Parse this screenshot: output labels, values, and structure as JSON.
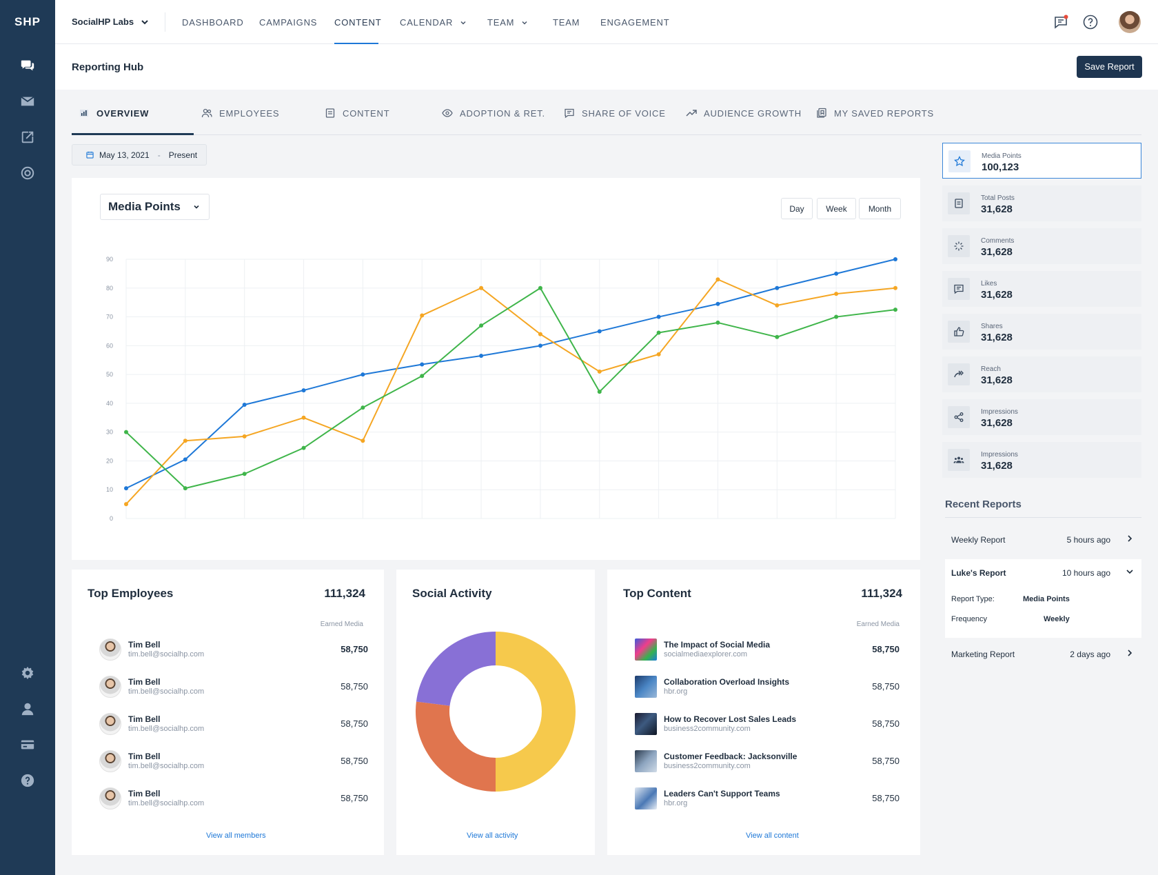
{
  "sidebar": {
    "logo": "SHP",
    "top_icons": [
      "chat-icon",
      "mail-icon",
      "compose-icon",
      "target-icon"
    ],
    "bottom_icons": [
      "gear-icon",
      "user-icon",
      "credit-card-icon",
      "help-icon"
    ]
  },
  "topbar": {
    "org_name": "SocialHP Labs",
    "nav": [
      {
        "label": "DASHBOARD",
        "dropdown": false
      },
      {
        "label": "CAMPAIGNS",
        "dropdown": false
      },
      {
        "label": "CONTENT",
        "dropdown": false,
        "active": true
      },
      {
        "label": "CALENDAR",
        "dropdown": true
      },
      {
        "label": "TEAM",
        "dropdown": true
      },
      {
        "label": "TEAM",
        "dropdown": false
      },
      {
        "label": "ENGAGEMENT",
        "dropdown": false
      }
    ],
    "icons": [
      "notifications-chat-icon",
      "help-circle-icon",
      "user-avatar"
    ]
  },
  "subheader": {
    "title": "Reporting Hub",
    "save_label": "Save Report"
  },
  "tabs": [
    {
      "label": "OVERVIEW",
      "icon": "bar-chart-icon",
      "active": true
    },
    {
      "label": "EMPLOYEES",
      "icon": "users-icon"
    },
    {
      "label": "CONTENT",
      "icon": "document-icon"
    },
    {
      "label": "ADOPTION & RET.",
      "icon": "eye-icon"
    },
    {
      "label": "SHARE OF VOICE",
      "icon": "message-icon"
    },
    {
      "label": "AUDIENCE GROWTH",
      "icon": "trending-up-icon"
    },
    {
      "label": "MY SAVED REPORTS",
      "icon": "saved-reports-icon"
    }
  ],
  "date_filter": {
    "start": "May 13, 2021",
    "sep": "-",
    "end": "Present"
  },
  "chart_panel": {
    "metric": "Media Points",
    "ranges": [
      "Day",
      "Week",
      "Month"
    ]
  },
  "chart_data": {
    "type": "line",
    "title": "",
    "xlabel": "",
    "ylabel": "",
    "ylim": [
      0,
      90
    ],
    "yticks": [
      0,
      10,
      20,
      30,
      40,
      50,
      60,
      70,
      80,
      90
    ],
    "x": [
      1,
      2,
      3,
      4,
      5,
      6,
      7,
      8,
      9,
      10,
      11,
      12,
      13,
      14
    ],
    "grid": true,
    "legend": "none",
    "series": [
      {
        "color": "#1e78d7",
        "values": [
          10.5,
          20.5,
          39.5,
          44.5,
          50,
          53.5,
          56.5,
          60,
          65,
          70,
          74.5,
          80,
          85,
          90
        ]
      },
      {
        "color": "#f5a623",
        "values": [
          5,
          27,
          28.5,
          35,
          27,
          70.5,
          80,
          64,
          51,
          57,
          83,
          74,
          78,
          80
        ]
      },
      {
        "color": "#3fb54a",
        "values": [
          30,
          10.5,
          15.5,
          24.5,
          38.5,
          49.5,
          67,
          80,
          44,
          64.5,
          68,
          63,
          70,
          72.5
        ]
      }
    ]
  },
  "stats": [
    {
      "label": "Media Points",
      "value": "100,123",
      "icon": "star-icon",
      "active": true
    },
    {
      "label": "Total Posts",
      "value": "31,628",
      "icon": "post-icon"
    },
    {
      "label": "Comments",
      "value": "31,628",
      "icon": "comments-icon"
    },
    {
      "label": "Likes",
      "value": "31,628",
      "icon": "likes-icon"
    },
    {
      "label": "Shares",
      "value": "31,628",
      "icon": "thumbs-up-icon"
    },
    {
      "label": "Reach",
      "value": "31,628",
      "icon": "reach-icon"
    },
    {
      "label": "Impressions",
      "value": "31,628",
      "icon": "share-icon"
    },
    {
      "label": "Impressions",
      "value": "31,628",
      "icon": "group-icon"
    }
  ],
  "recent_reports": {
    "title": "Recent Reports",
    "items": [
      {
        "name": "Weekly Report",
        "time": "5 hours ago"
      },
      {
        "name": "Luke's Report",
        "time": "10 hours ago",
        "expanded": true,
        "details": [
          {
            "label": "Report Type:",
            "value": "Media Points"
          },
          {
            "label": "Frequency",
            "value": "Weekly"
          }
        ]
      },
      {
        "name": "Marketing Report",
        "time": "2 days ago"
      }
    ]
  },
  "top_employees": {
    "title": "Top Employees",
    "total": "111,324",
    "column": "Earned Media",
    "rows": [
      {
        "name": "Tim Bell",
        "email": "tim.bell@socialhp.com",
        "value": "58,750"
      },
      {
        "name": "Tim Bell",
        "email": "tim.bell@socialhp.com",
        "value": "58,750"
      },
      {
        "name": "Tim Bell",
        "email": "tim.bell@socialhp.com",
        "value": "58,750"
      },
      {
        "name": "Tim Bell",
        "email": "tim.bell@socialhp.com",
        "value": "58,750"
      },
      {
        "name": "Tim Bell",
        "email": "tim.bell@socialhp.com",
        "value": "58,750"
      }
    ],
    "link": "View all members"
  },
  "social_activity": {
    "title": "Social Activity",
    "donut": [
      {
        "value": 50,
        "color": "#f6c94c"
      },
      {
        "value": 27,
        "color": "#e0754e"
      },
      {
        "value": 23,
        "color": "#8870d6"
      }
    ],
    "link": "View all activity"
  },
  "top_content": {
    "title": "Top Content",
    "total": "111,324",
    "column": "Earned Media",
    "rows": [
      {
        "title": "The Impact of Social Media",
        "source": "socialmediaexplorer.com",
        "value": "58,750"
      },
      {
        "title": "Collaboration Overload Insights",
        "source": "hbr.org",
        "value": "58,750"
      },
      {
        "title": "How to Recover Lost Sales Leads",
        "source": "business2community.com",
        "value": "58,750"
      },
      {
        "title": "Customer Feedback: Jacksonville",
        "source": "business2community.com",
        "value": "58,750"
      },
      {
        "title": "Leaders Can't Support Teams",
        "source": "hbr.org",
        "value": "58,750"
      }
    ],
    "link": "View all content"
  }
}
